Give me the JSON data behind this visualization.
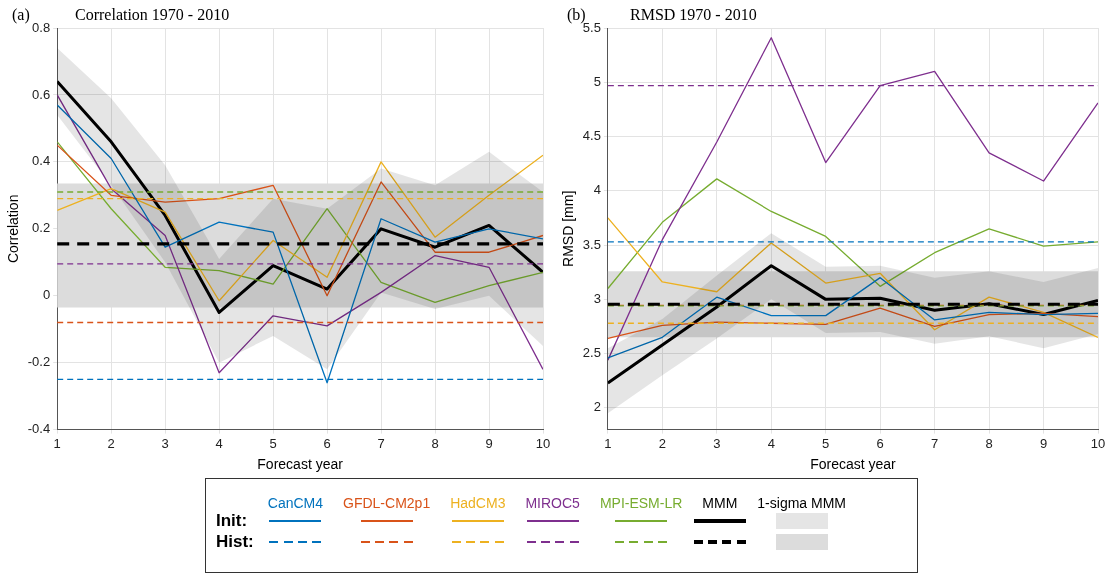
{
  "chart_data": [
    {
      "type": "line",
      "title": "Correlation 1970 - 2010",
      "xlabel": "Forecast year",
      "ylabel": "Correlation",
      "annotations": [
        "(a)",
        "Init:",
        "Hist:",
        "1-sigma MMM"
      ],
      "x": [
        1,
        2,
        3,
        4,
        5,
        6,
        7,
        8,
        9,
        10
      ],
      "xlim": [
        1,
        10
      ],
      "xticks": [
        1,
        2,
        3,
        4,
        5,
        6,
        7,
        8,
        9,
        10
      ],
      "ylim": [
        -0.4,
        0.8
      ],
      "yticks": [
        -0.4,
        -0.2,
        0,
        0.2,
        0.4,
        0.6,
        0.8
      ],
      "grid": true,
      "legend": "bottom",
      "line_style": "solid",
      "marker": "none",
      "series": [
        {
          "name": "CanCM4",
          "color": "#0072bd",
          "values": [
            0.57,
            0.41,
            0.145,
            0.22,
            0.19,
            -0.26,
            0.23,
            0.16,
            0.2,
            0.17
          ]
        },
        {
          "name": "GFDL-CM2p1",
          "color": "#d95319",
          "values": [
            0.45,
            0.3,
            0.28,
            0.29,
            0.33,
            0.0,
            0.34,
            0.13,
            0.13,
            0.18
          ]
        },
        {
          "name": "HadCM3",
          "color": "#edb120",
          "values": [
            0.255,
            0.32,
            0.25,
            -0.015,
            0.165,
            0.055,
            0.4,
            0.175,
            0.3,
            0.42
          ]
        },
        {
          "name": "MIROC5",
          "color": "#7e2f8e",
          "values": [
            0.6,
            0.32,
            0.18,
            -0.23,
            -0.06,
            -0.09,
            0.01,
            0.12,
            0.085,
            -0.22
          ]
        },
        {
          "name": "MPI-ESM-LR",
          "color": "#77ac30",
          "values": [
            0.46,
            0.26,
            0.085,
            0.075,
            0.035,
            0.26,
            0.04,
            -0.02,
            0.03,
            0.07
          ]
        },
        {
          "name": "MMM",
          "color": "#000000",
          "values": [
            0.64,
            0.46,
            0.24,
            -0.05,
            0.09,
            0.02,
            0.2,
            0.145,
            0.21,
            0.07
          ],
          "lower": [
            0.54,
            0.33,
            0.1,
            -0.2,
            -0.12,
            -0.22,
            0.01,
            -0.04,
            0.0,
            -0.15
          ],
          "upper": [
            0.74,
            0.59,
            0.39,
            0.11,
            0.29,
            0.26,
            0.38,
            0.33,
            0.43,
            0.31
          ]
        }
      ],
      "bands": [
        {
          "axis": "y",
          "from": -0.035,
          "to": 0.335,
          "color": "#dcdcdc"
        }
      ],
      "ref_lines": [
        {
          "axis": "y",
          "value": -0.25,
          "color": "#0072bd",
          "line_style": "dashed"
        },
        {
          "axis": "y",
          "value": -0.08,
          "color": "#d95319",
          "line_style": "dashed"
        },
        {
          "axis": "y",
          "value": 0.29,
          "color": "#edb120",
          "line_style": "dashed"
        },
        {
          "axis": "y",
          "value": 0.095,
          "color": "#7e2f8e",
          "line_style": "dashed"
        },
        {
          "axis": "y",
          "value": 0.31,
          "color": "#77ac30",
          "line_style": "dashed"
        },
        {
          "axis": "y",
          "value": 0.155,
          "color": "#000000",
          "line_style": "dashed"
        }
      ]
    },
    {
      "type": "line",
      "title": "RMSD 1970 - 2010",
      "xlabel": "Forecast year",
      "ylabel": "RMSD [mm]",
      "annotations": [
        "(b)"
      ],
      "x": [
        1,
        2,
        3,
        4,
        5,
        6,
        7,
        8,
        9,
        10
      ],
      "xlim": [
        1,
        10
      ],
      "xticks": [
        1,
        2,
        3,
        4,
        5,
        6,
        7,
        8,
        9,
        10
      ],
      "ylim": [
        1.8,
        5.5
      ],
      "yticks": [
        2,
        2.5,
        3,
        3.5,
        4,
        4.5,
        5,
        5.5
      ],
      "grid": true,
      "line_style": "solid",
      "marker": "none",
      "series": [
        {
          "color": "#0072bd",
          "values": [
            2.46,
            2.65,
            3.02,
            2.85,
            2.85,
            3.2,
            2.81,
            2.88,
            2.86,
            2.87
          ]
        },
        {
          "color": "#d95319",
          "values": [
            2.64,
            2.76,
            2.79,
            2.78,
            2.77,
            2.92,
            2.75,
            2.86,
            2.87,
            2.84
          ]
        },
        {
          "color": "#edb120",
          "values": [
            3.75,
            3.16,
            3.07,
            3.52,
            3.15,
            3.24,
            2.72,
            3.02,
            2.88,
            2.65
          ]
        },
        {
          "color": "#7e2f8e",
          "values": [
            2.44,
            3.55,
            4.45,
            5.41,
            4.26,
            4.97,
            5.1,
            4.35,
            4.09,
            4.81
          ]
        },
        {
          "color": "#77ac30",
          "values": [
            3.1,
            3.71,
            4.11,
            3.81,
            3.58,
            3.12,
            3.43,
            3.65,
            3.49,
            3.53
          ]
        },
        {
          "color": "#000000",
          "values": [
            2.23,
            2.58,
            2.93,
            3.31,
            3.0,
            3.01,
            2.9,
            2.96,
            2.86,
            2.99
          ],
          "lower": [
            1.95,
            2.3,
            2.64,
            3.0,
            2.69,
            2.7,
            2.59,
            2.66,
            2.55,
            2.68
          ],
          "upper": [
            2.55,
            2.82,
            3.22,
            3.61,
            3.3,
            3.31,
            3.2,
            3.26,
            3.16,
            3.29
          ]
        }
      ],
      "bands": [
        {
          "axis": "y",
          "from": 2.65,
          "to": 3.26,
          "color": "#dcdcdc"
        }
      ],
      "ref_lines": [
        {
          "axis": "y",
          "value": 3.53,
          "color": "#0072bd",
          "line_style": "dashed"
        },
        {
          "axis": "y",
          "value": 2.945,
          "color": "#d95319",
          "line_style": "dashed"
        },
        {
          "axis": "y",
          "value": 2.78,
          "color": "#edb120",
          "line_style": "dashed"
        },
        {
          "axis": "y",
          "value": 4.97,
          "color": "#7e2f8e",
          "line_style": "dashed"
        },
        {
          "axis": "y",
          "value": 2.94,
          "color": "#77ac30",
          "line_style": "dashed"
        },
        {
          "axis": "y",
          "value": 2.955,
          "color": "#000000",
          "line_style": "dashed"
        }
      ]
    }
  ]
}
